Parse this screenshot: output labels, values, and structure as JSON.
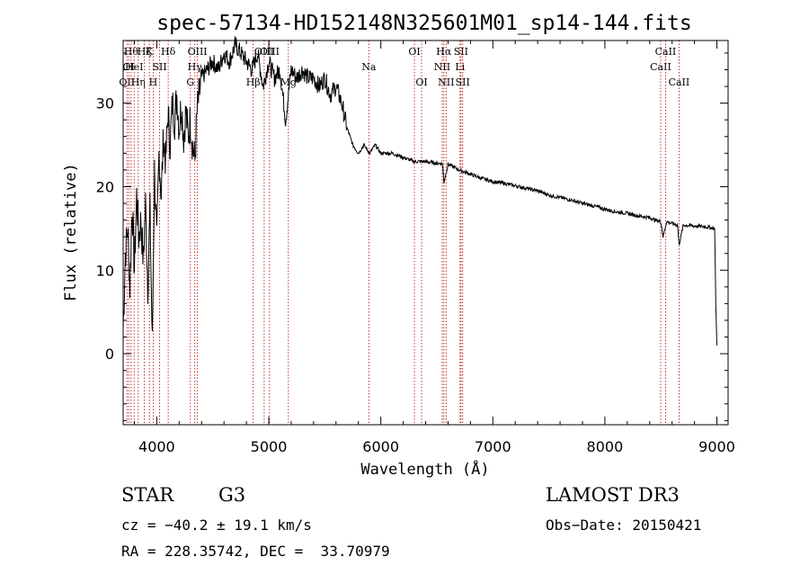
{
  "chart_data": {
    "type": "line",
    "title": "spec-57134-HD152148N325601M01_sp14-144.fits",
    "xlabel": "Wavelength (Å)",
    "ylabel": "Flux (relative)",
    "xlim": [
      3700,
      9100
    ],
    "ylim": [
      -8.5,
      37.5
    ],
    "xticks": [
      4000,
      5000,
      6000,
      7000,
      8000,
      9000
    ],
    "yticks": [
      0,
      10,
      20,
      30
    ],
    "series": [
      {
        "name": "spectrum",
        "x": [
          3700,
          3720,
          3740,
          3760,
          3780,
          3800,
          3820,
          3840,
          3860,
          3880,
          3900,
          3920,
          3940,
          3960,
          3980,
          4000,
          4020,
          4040,
          4060,
          4080,
          4100,
          4120,
          4140,
          4160,
          4180,
          4200,
          4220,
          4240,
          4260,
          4280,
          4300,
          4320,
          4340,
          4360,
          4380,
          4400,
          4450,
          4500,
          4550,
          4600,
          4650,
          4700,
          4750,
          4800,
          4850,
          4900,
          4950,
          5000,
          5050,
          5100,
          5150,
          5200,
          5250,
          5300,
          5350,
          5400,
          5450,
          5500,
          5550,
          5600,
          5650,
          5700,
          5750,
          5800,
          5850,
          5900,
          5950,
          6000,
          6100,
          6200,
          6300,
          6400,
          6500,
          6550,
          6563,
          6600,
          6700,
          6800,
          6900,
          7000,
          7100,
          7200,
          7300,
          7400,
          7500,
          7600,
          7700,
          7800,
          7900,
          8000,
          8100,
          8200,
          8300,
          8400,
          8450,
          8500,
          8520,
          8550,
          8600,
          8650,
          8662,
          8700,
          8800,
          8900,
          8980,
          8990,
          9000
        ],
        "y": [
          3,
          12,
          15,
          8,
          18,
          10,
          19,
          14,
          16,
          11,
          18,
          8,
          17,
          1,
          22,
          13,
          24,
          19,
          26,
          23,
          29,
          25,
          30,
          28,
          31,
          27,
          30,
          26,
          29,
          26,
          28,
          25,
          23,
          29,
          31,
          33,
          34,
          35,
          34,
          36,
          35,
          37,
          36,
          35,
          34,
          36,
          32,
          35,
          33,
          34,
          28,
          34,
          33,
          34,
          33,
          33,
          32,
          33,
          31,
          32,
          30,
          27,
          25,
          24,
          25,
          24,
          25,
          24,
          24,
          23.5,
          23,
          23,
          22.8,
          22.8,
          20.5,
          22.7,
          22,
          21.5,
          21,
          20.6,
          20.4,
          20.1,
          19.8,
          19.5,
          19,
          18.7,
          18.4,
          18,
          17.7,
          17.3,
          17,
          16.8,
          16.5,
          16.3,
          16,
          15.8,
          14,
          15.8,
          15.6,
          15.4,
          13,
          15.4,
          15.3,
          15.2,
          15,
          6,
          1
        ]
      }
    ],
    "lines": [
      {
        "wl": 3734,
        "label": "OII",
        "row": 3
      },
      {
        "wl": 3750,
        "label": "OI",
        "row": 2
      },
      {
        "wl": 3771,
        "label": "Hθ",
        "row": 1
      },
      {
        "wl": 3798,
        "label": "HeI",
        "row": 2
      },
      {
        "wl": 3835,
        "label": "Hη",
        "row": 3
      },
      {
        "wl": 3889,
        "label": "Hζ",
        "row": 1
      },
      {
        "wl": 3934,
        "label": "K",
        "row": 1
      },
      {
        "wl": 3968,
        "label": "H",
        "row": 3
      },
      {
        "wl": 4026,
        "label": "SII",
        "row": 2
      },
      {
        "wl": 4102,
        "label": "Hδ",
        "row": 1
      },
      {
        "wl": 4300,
        "label": "G",
        "row": 3
      },
      {
        "wl": 4340,
        "label": "Hγ",
        "row": 2
      },
      {
        "wl": 4363,
        "label": "OIII",
        "row": 1
      },
      {
        "wl": 4861,
        "label": "Hβ",
        "row": 3
      },
      {
        "wl": 4959,
        "label": "OIII",
        "row": 1
      },
      {
        "wl": 5007,
        "label": "OIII",
        "row": 1
      },
      {
        "wl": 5175,
        "label": "Mg",
        "row": 3
      },
      {
        "wl": 5893,
        "label": "Na",
        "row": 2
      },
      {
        "wl": 6300,
        "label": "OI",
        "row": 1
      },
      {
        "wl": 6364,
        "label": "OI",
        "row": 3
      },
      {
        "wl": 6548,
        "label": "NII",
        "row": 2
      },
      {
        "wl": 6563,
        "label": "Hα",
        "row": 1
      },
      {
        "wl": 6583,
        "label": "NII",
        "row": 3
      },
      {
        "wl": 6707,
        "label": "Li",
        "row": 2
      },
      {
        "wl": 6716,
        "label": "SII",
        "row": 1
      },
      {
        "wl": 6731,
        "label": "SII",
        "row": 3
      },
      {
        "wl": 8498,
        "label": "CaII",
        "row": 2
      },
      {
        "wl": 8542,
        "label": "CaII",
        "row": 1
      },
      {
        "wl": 8662,
        "label": "CaII",
        "row": 3
      }
    ]
  },
  "info": {
    "class_label": "STAR",
    "subclass": "G3",
    "survey": "LAMOST DR3",
    "cz": "cz = −40.2 ± 19.1 km/s",
    "obs_date": "Obs−Date: 20150421",
    "radec": "RA = 228.35742, DEC =  33.70979"
  },
  "colors": {
    "spectrum": "#000000",
    "lines": "#b00000",
    "axes": "#000000"
  }
}
